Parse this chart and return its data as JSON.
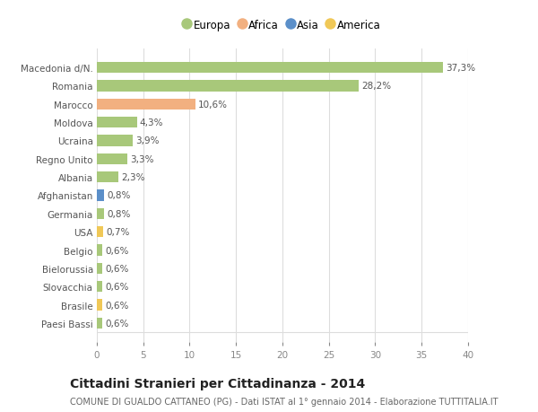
{
  "countries": [
    "Macedonia d/N.",
    "Romania",
    "Marocco",
    "Moldova",
    "Ucraina",
    "Regno Unito",
    "Albania",
    "Afghanistan",
    "Germania",
    "USA",
    "Belgio",
    "Bielorussia",
    "Slovacchia",
    "Brasile",
    "Paesi Bassi"
  ],
  "values": [
    37.3,
    28.2,
    10.6,
    4.3,
    3.9,
    3.3,
    2.3,
    0.8,
    0.8,
    0.7,
    0.6,
    0.6,
    0.6,
    0.6,
    0.6
  ],
  "labels": [
    "37,3%",
    "28,2%",
    "10,6%",
    "4,3%",
    "3,9%",
    "3,3%",
    "2,3%",
    "0,8%",
    "0,8%",
    "0,7%",
    "0,6%",
    "0,6%",
    "0,6%",
    "0,6%",
    "0,6%"
  ],
  "continents": [
    "Europa",
    "Europa",
    "Africa",
    "Europa",
    "Europa",
    "Europa",
    "Europa",
    "Asia",
    "Europa",
    "America",
    "Europa",
    "Europa",
    "Europa",
    "America",
    "Europa"
  ],
  "colors": {
    "Europa": "#a8c87a",
    "Africa": "#f2b080",
    "Asia": "#5b8fc9",
    "America": "#f0c857"
  },
  "legend_order": [
    "Europa",
    "Africa",
    "Asia",
    "America"
  ],
  "xlim": [
    0,
    40
  ],
  "xticks": [
    0,
    5,
    10,
    15,
    20,
    25,
    30,
    35,
    40
  ],
  "title": "Cittadini Stranieri per Cittadinanza - 2014",
  "subtitle": "COMUNE DI GUALDO CATTANEO (PG) - Dati ISTAT al 1° gennaio 2014 - Elaborazione TUTTITALIA.IT",
  "background_color": "#ffffff",
  "grid_color": "#dddddd",
  "bar_height": 0.6,
  "label_fontsize": 7.5,
  "tick_fontsize": 7.5,
  "title_fontsize": 10,
  "subtitle_fontsize": 7
}
